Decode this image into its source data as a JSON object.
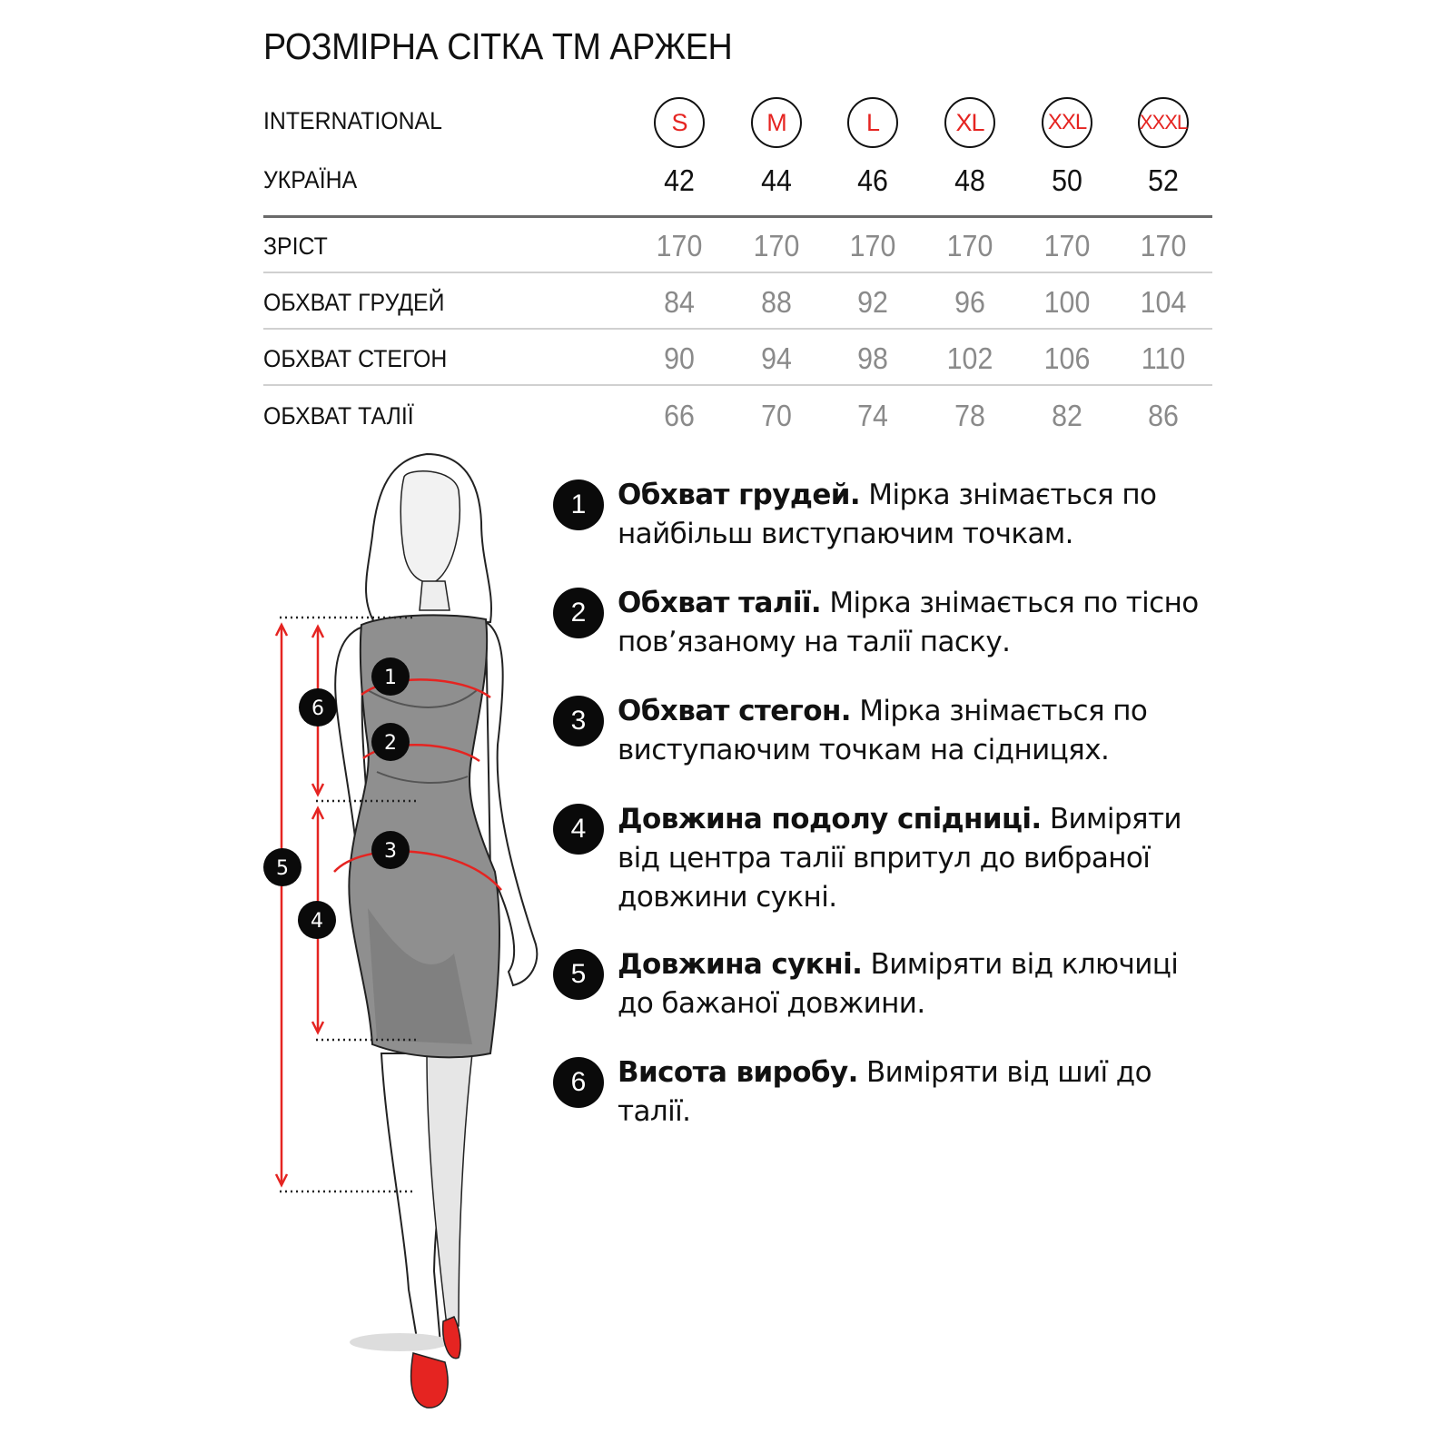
{
  "title": "РОЗМІРНА СІТКА ТМ АРЖЕН",
  "accent_color": "#e52421",
  "table": {
    "header_rows": [
      {
        "label": "INTERNATIONAL",
        "values": [
          "S",
          "M",
          "L",
          "XL",
          "XXL",
          "XXXL"
        ]
      },
      {
        "label": "УКРАЇНА",
        "values": [
          "42",
          "44",
          "46",
          "48",
          "50",
          "52"
        ]
      }
    ],
    "rows": [
      {
        "label": "ЗРІСТ",
        "values": [
          "170",
          "170",
          "170",
          "170",
          "170",
          "170"
        ]
      },
      {
        "label": "ОБХВАТ ГРУДЕЙ",
        "values": [
          "84",
          "88",
          "92",
          "96",
          "100",
          "104"
        ]
      },
      {
        "label": "ОБХВАТ СТЕГОН",
        "values": [
          "90",
          "94",
          "98",
          "102",
          "106",
          "110"
        ]
      },
      {
        "label": "ОБХВАТ ТАЛІЇ",
        "values": [
          "66",
          "70",
          "74",
          "78",
          "82",
          "86"
        ]
      }
    ]
  },
  "instructions": [
    {
      "num": "1",
      "bold": "Обхват грудей.",
      "text": " Мірка знімається по найбільш виступаючим точкам."
    },
    {
      "num": "2",
      "bold": "Обхват талії.",
      "text": " Мірка знімається по тісно пов’язаному на талії паску."
    },
    {
      "num": "3",
      "bold": "Обхват стегон.",
      "text": " Мірка знімається по виступаючим точкам на сідницях."
    },
    {
      "num": "4",
      "bold": "Довжина подолу спідниці.",
      "text": " Виміряти від центра талії впритул до вибраної довжини сукні."
    },
    {
      "num": "5",
      "bold": "Довжина сукні.",
      "text": " Виміряти від ключиці до бажаної довжини."
    },
    {
      "num": "6",
      "bold": "Висота виробу.",
      "text": " Виміряти від шиї до талії."
    }
  ],
  "figure": {
    "markers": [
      "1",
      "2",
      "3",
      "4",
      "5",
      "6"
    ]
  }
}
